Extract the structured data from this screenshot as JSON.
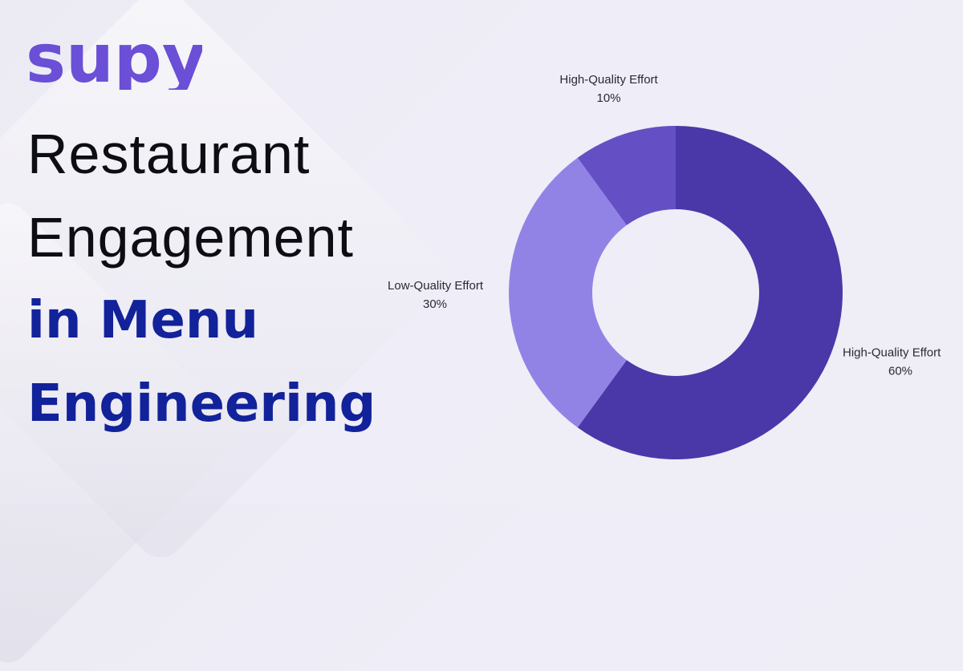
{
  "brand": {
    "logo_text": "supy",
    "logo_color": "#6b4fd6"
  },
  "headline": {
    "line1": "Restaurant",
    "line2": "Engagement",
    "line3": "in Menu",
    "line4": "Engineering",
    "dark_color": "#0d0d14",
    "accent_color": "#12229a"
  },
  "chart_data": {
    "type": "pie",
    "donut": true,
    "title": "",
    "slices": [
      {
        "label": "High-Quality Effort",
        "value": 60,
        "value_label": "60%",
        "color": "#4a38a8"
      },
      {
        "label": "Low-Quality Effort",
        "value": 30,
        "value_label": "30%",
        "color": "#9183e6"
      },
      {
        "label": "High-Quality Effort",
        "value": 10,
        "value_label": "10%",
        "color": "#6450c4"
      }
    ]
  }
}
